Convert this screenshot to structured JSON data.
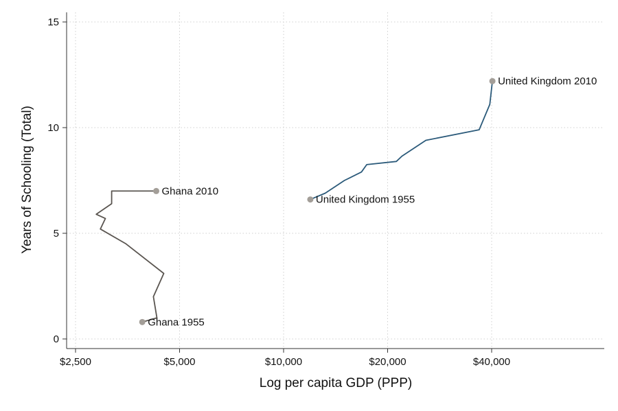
{
  "chart_data": {
    "type": "line",
    "title": "",
    "xlabel": "Log per capita GDP (PPP)",
    "ylabel": "Years of Schooling (Total)",
    "x_scale": "log",
    "xlim": [
      2500,
      100000
    ],
    "ylim": [
      0,
      15
    ],
    "x_ticks": [
      {
        "value": 2500,
        "label": "$2,500"
      },
      {
        "value": 5000,
        "label": "$5,000"
      },
      {
        "value": 10000,
        "label": "$10,000"
      },
      {
        "value": 20000,
        "label": "$20,000"
      },
      {
        "value": 40000,
        "label": "$40,000"
      }
    ],
    "y_ticks": [
      {
        "value": 0,
        "label": "0"
      },
      {
        "value": 5,
        "label": "5"
      },
      {
        "value": 10,
        "label": "10"
      },
      {
        "value": 15,
        "label": "15"
      }
    ],
    "grid": true,
    "series": [
      {
        "color": "#5a5550",
        "points": [
          {
            "x": 3900,
            "y": 0.8
          },
          {
            "x": 4300,
            "y": 1.0
          },
          {
            "x": 4200,
            "y": 2.0
          },
          {
            "x": 4500,
            "y": 3.1
          },
          {
            "x": 3500,
            "y": 4.5
          },
          {
            "x": 2950,
            "y": 5.2
          },
          {
            "x": 3050,
            "y": 5.7
          },
          {
            "x": 2870,
            "y": 5.9
          },
          {
            "x": 3180,
            "y": 6.4
          },
          {
            "x": 3180,
            "y": 7.0
          },
          {
            "x": 4280,
            "y": 7.0
          }
        ],
        "start_label": "Ghana 1955",
        "end_label": "Ghana 2010"
      },
      {
        "color": "#2b5a7a",
        "points": [
          {
            "x": 11950,
            "y": 6.6
          },
          {
            "x": 13200,
            "y": 6.9
          },
          {
            "x": 15000,
            "y": 7.5
          },
          {
            "x": 16800,
            "y": 7.9
          },
          {
            "x": 17400,
            "y": 8.25
          },
          {
            "x": 21200,
            "y": 8.4
          },
          {
            "x": 22000,
            "y": 8.65
          },
          {
            "x": 25800,
            "y": 9.4
          },
          {
            "x": 36800,
            "y": 9.9
          },
          {
            "x": 39500,
            "y": 11.1
          },
          {
            "x": 40200,
            "y": 12.2
          }
        ],
        "start_label": "United Kingdom 1955",
        "end_label": "United Kingdom 2010"
      }
    ],
    "endpoint_marker_color": "#a39e98"
  }
}
